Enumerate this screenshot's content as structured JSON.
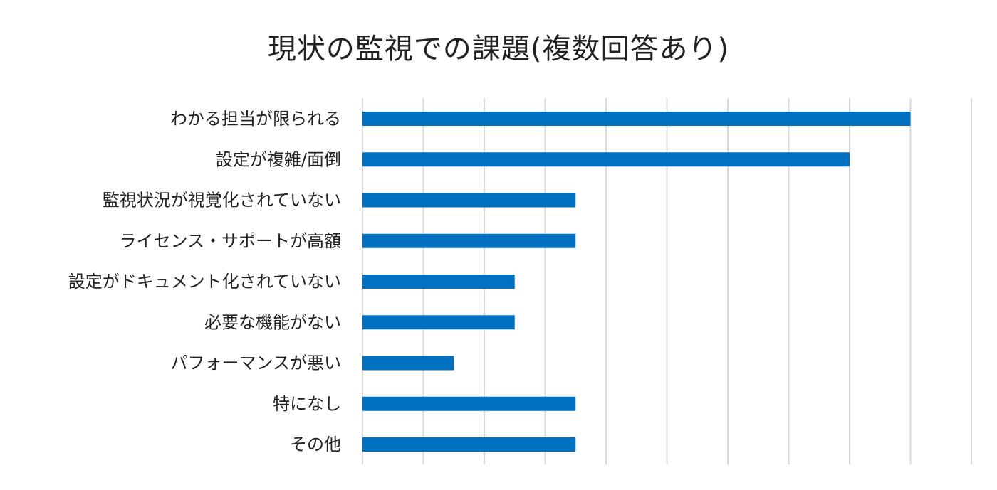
{
  "chart_data": {
    "type": "bar",
    "orientation": "horizontal",
    "title": "現状の監視での課題(複数回答あり)",
    "categories": [
      "わかる担当が限られる",
      "設定が複雑/面倒",
      "監視状況が視覚化されていない",
      "ライセンス・サポートが高額",
      "設定がドキュメント化されていない",
      "必要な機能がない",
      "パフォーマンスが悪い",
      "特になし",
      "その他"
    ],
    "values": [
      9,
      8,
      3.5,
      3.5,
      2.5,
      2.5,
      1.5,
      3.5,
      3.5
    ],
    "xlim": [
      0,
      10
    ],
    "x_grid_step": 1,
    "grid": true,
    "legend": "none",
    "bar_color": "#0070C0",
    "grid_color": "#D9D9D9"
  }
}
